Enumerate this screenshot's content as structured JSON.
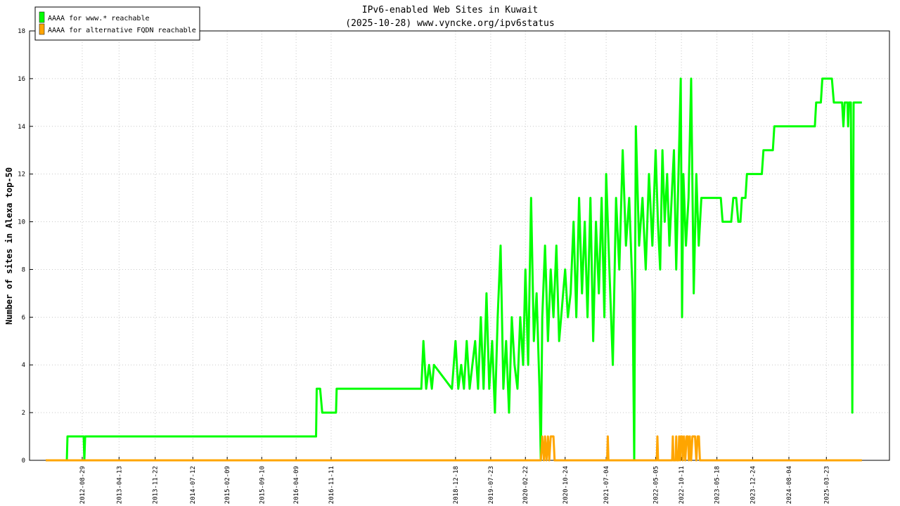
{
  "chart_data": {
    "type": "line",
    "title": "IPv6-enabled Web Sites in Kuwait",
    "subtitle": "(2025-10-28) www.vyncke.org/ipv6status",
    "y_label": "Number of sites in Alexa top-50",
    "xlim": [
      "2011-10-09",
      "2026-04-16"
    ],
    "ylim": [
      0,
      18
    ],
    "yticks": [
      0,
      2,
      4,
      6,
      8,
      10,
      12,
      14,
      16,
      18
    ],
    "xticks": [
      "2012-08-29",
      "2013-04-13",
      "2013-11-22",
      "2014-07-12",
      "2015-02-09",
      "2015-09-10",
      "2016-04-09",
      "2016-11-11",
      "2018-12-18",
      "2019-07-23",
      "2020-02-22",
      "2020-10-24",
      "2021-07-04",
      "2022-05-05",
      "2022-10-11",
      "2023-05-18",
      "2023-12-24",
      "2024-08-04",
      "2025-03-23"
    ],
    "grid": true,
    "legend": "top-left",
    "series": [
      {
        "name": "AAAA for www.* reachable",
        "color": "#00ff00",
        "x": [
          "2012-01-17",
          "2012-05-26",
          "2012-05-30",
          "2012-09-07",
          "2012-09-11",
          "2012-09-16",
          "2016-08-10",
          "2016-08-14",
          "2016-09-04",
          "2016-09-17",
          "2016-12-11",
          "2016-12-15",
          "2018-05-21",
          "2018-06-03",
          "2018-06-20",
          "2018-07-08",
          "2018-07-25",
          "2018-08-07",
          "2018-11-26",
          "2018-12-18",
          "2019-01-04",
          "2019-01-22",
          "2019-02-08",
          "2019-02-25",
          "2019-03-15",
          "2019-04-01",
          "2019-04-18",
          "2019-05-06",
          "2019-05-23",
          "2019-06-09",
          "2019-06-27",
          "2019-07-14",
          "2019-08-01",
          "2019-08-18",
          "2019-09-04",
          "2019-09-22",
          "2019-10-09",
          "2019-10-26",
          "2019-11-13",
          "2019-11-30",
          "2019-12-17",
          "2020-01-04",
          "2020-01-21",
          "2020-02-08",
          "2020-02-22",
          "2020-03-10",
          "2020-03-28",
          "2020-04-14",
          "2020-05-01",
          "2020-05-19",
          "2020-05-27",
          "2020-06-05",
          "2020-06-22",
          "2020-07-10",
          "2020-07-27",
          "2020-08-13",
          "2020-08-31",
          "2020-09-17",
          "2020-10-24",
          "2020-11-10",
          "2020-11-27",
          "2020-12-15",
          "2021-01-01",
          "2021-01-18",
          "2021-02-05",
          "2021-02-22",
          "2021-03-11",
          "2021-03-29",
          "2021-04-15",
          "2021-05-02",
          "2021-05-20",
          "2021-06-06",
          "2021-06-23",
          "2021-07-04",
          "2021-07-24",
          "2021-08-14",
          "2021-09-03",
          "2021-09-23",
          "2021-10-14",
          "2021-11-03",
          "2021-11-23",
          "2021-12-14",
          "2021-12-24",
          "2022-01-03",
          "2022-01-23",
          "2022-02-13",
          "2022-03-05",
          "2022-03-25",
          "2022-04-15",
          "2022-05-05",
          "2022-05-19",
          "2022-06-02",
          "2022-06-16",
          "2022-06-30",
          "2022-07-15",
          "2022-07-29",
          "2022-08-12",
          "2022-08-26",
          "2022-09-09",
          "2022-09-23",
          "2022-10-07",
          "2022-10-15",
          "2022-10-23",
          "2022-11-08",
          "2022-11-24",
          "2022-12-10",
          "2022-12-26",
          "2023-01-11",
          "2023-01-26",
          "2023-02-11",
          "2023-02-19",
          "2023-06-11",
          "2023-06-22",
          "2023-08-14",
          "2023-08-27",
          "2023-09-14",
          "2023-09-27",
          "2023-10-10",
          "2023-10-19",
          "2023-11-10",
          "2023-11-19",
          "2024-02-19",
          "2024-02-29",
          "2024-04-27",
          "2024-05-06",
          "2025-01-11",
          "2025-01-19",
          "2025-02-17",
          "2025-02-26",
          "2025-04-26",
          "2025-05-08",
          "2025-06-28",
          "2025-07-06",
          "2025-07-14",
          "2025-07-31",
          "2025-08-04",
          "2025-08-09",
          "2025-08-21",
          "2025-08-30",
          "2025-09-07",
          "2025-10-28"
        ],
        "values": [
          0,
          0,
          1,
          1,
          0,
          1,
          1,
          3,
          3,
          2,
          2,
          3,
          3,
          5,
          3,
          4,
          3,
          4,
          3,
          5,
          3,
          4,
          3,
          5,
          3,
          4,
          5,
          3,
          6,
          3,
          7,
          3,
          5,
          2,
          6,
          9,
          3,
          5,
          2,
          6,
          4,
          3,
          6,
          4,
          8,
          4,
          11,
          5,
          7,
          3,
          0,
          6,
          9,
          5,
          8,
          6,
          9,
          5,
          8,
          6,
          7,
          10,
          6,
          11,
          7,
          10,
          6,
          11,
          5,
          10,
          7,
          11,
          6,
          12,
          8,
          4,
          11,
          8,
          13,
          9,
          11,
          7,
          0,
          14,
          9,
          11,
          8,
          12,
          9,
          13,
          10,
          8,
          13,
          10,
          12,
          9,
          11,
          13,
          8,
          12,
          16,
          6,
          12,
          9,
          11,
          16,
          7,
          12,
          9,
          11,
          11,
          11,
          10,
          10,
          11,
          11,
          10,
          10,
          11,
          11,
          12,
          12,
          13,
          13,
          14,
          14,
          15,
          15,
          16,
          16,
          15,
          15,
          14,
          15,
          15,
          14,
          15,
          15,
          2,
          15,
          15
        ]
      },
      {
        "name": "AAAA for alternative FQDN reachable",
        "color": "#ffa500",
        "x": [
          "2012-01-17",
          "2020-05-27",
          "2020-06-05",
          "2020-06-15",
          "2020-06-22",
          "2020-07-01",
          "2020-07-10",
          "2020-07-18",
          "2020-07-27",
          "2020-08-13",
          "2020-08-20",
          "2021-07-10",
          "2021-07-14",
          "2021-07-18",
          "2022-05-12",
          "2022-05-16",
          "2022-05-20",
          "2022-08-15",
          "2022-08-19",
          "2022-08-23",
          "2022-09-05",
          "2022-09-09",
          "2022-09-13",
          "2022-09-23",
          "2022-09-27",
          "2022-10-03",
          "2022-10-07",
          "2022-10-15",
          "2022-10-19",
          "2022-10-27",
          "2022-11-04",
          "2022-11-12",
          "2022-11-20",
          "2022-11-26",
          "2022-12-02",
          "2022-12-10",
          "2022-12-18",
          "2023-01-03",
          "2023-01-11",
          "2023-01-19",
          "2023-01-27",
          "2023-02-02",
          "2025-10-28"
        ],
        "values": [
          0,
          0,
          1,
          0,
          1,
          0,
          1,
          0,
          1,
          1,
          0,
          0,
          1,
          0,
          0,
          1,
          0,
          0,
          1,
          0,
          0,
          1,
          0,
          0,
          1,
          0,
          1,
          1,
          0,
          1,
          0,
          1,
          1,
          0,
          1,
          0,
          1,
          1,
          0,
          1,
          1,
          0,
          0
        ]
      }
    ]
  }
}
